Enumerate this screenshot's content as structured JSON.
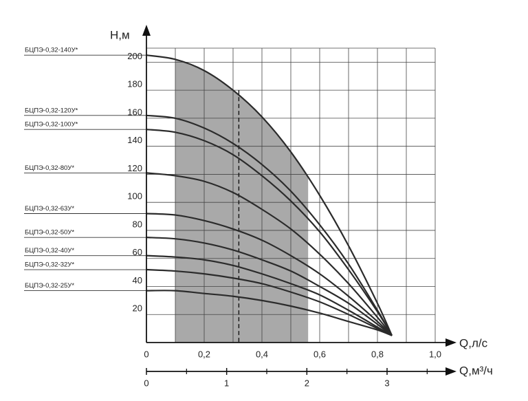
{
  "chart_data": {
    "type": "line",
    "y_label": "H,м",
    "x_label": "Q,л/с",
    "x2_label": "Q,м³/ч",
    "x": [
      0,
      0.1,
      0.2,
      0.3,
      0.4,
      0.5,
      0.6,
      0.7,
      0.8,
      0.85
    ],
    "xlim": [
      0,
      1
    ],
    "xticks": [
      0,
      {
        "value": 0.2,
        "label": "0,2"
      },
      {
        "value": 0.4,
        "label": "0,4"
      },
      {
        "value": 0.6,
        "label": "0,6"
      },
      {
        "value": 0.8,
        "label": "0,8"
      },
      {
        "value": 1,
        "label": "1,0"
      }
    ],
    "xminor": [
      0.1,
      0.3,
      0.5,
      0.7,
      0.9
    ],
    "x2lim": [
      0,
      3.6
    ],
    "x2ticks": [
      0,
      1,
      2,
      3
    ],
    "x2minor": [
      0.5,
      1.5,
      2.5,
      3.5
    ],
    "ylim": [
      0,
      210
    ],
    "yticks": [
      20,
      40,
      60,
      80,
      100,
      120,
      140,
      160,
      180,
      200
    ],
    "grid": true,
    "shaded_range": [
      0.1,
      0.56
    ],
    "shade_color": "#a9a9a9",
    "dashed_x": 0.32,
    "series": [
      {
        "name": "БЦПЭ-0,32-140У*",
        "color": "#2b2b2b",
        "values": [
          205,
          202,
          194,
          180,
          161,
          136,
          105,
          69,
          28,
          5
        ]
      },
      {
        "name": "БЦПЭ-0,32-120У*",
        "color": "#2b2b2b",
        "values": [
          162,
          160,
          153,
          142,
          127,
          108,
          84,
          56,
          23,
          5
        ]
      },
      {
        "name": "БЦПЭ-0,32-100У*",
        "color": "#2b2b2b",
        "values": [
          152,
          150,
          144,
          134,
          119,
          101,
          79,
          52,
          22,
          5
        ]
      },
      {
        "name": "БЦПЭ-0,32-80У*",
        "color": "#2b2b2b",
        "values": [
          121,
          119,
          115,
          107,
          95,
          81,
          63,
          42,
          18,
          5
        ]
      },
      {
        "name": "БЦПЭ-0,32-63У*",
        "color": "#2b2b2b",
        "values": [
          92,
          91,
          87,
          81,
          73,
          62,
          49,
          33,
          15,
          5
        ]
      },
      {
        "name": "БЦПЭ-0,32-50У*",
        "color": "#2b2b2b",
        "values": [
          75,
          74,
          71,
          66,
          59,
          51,
          40,
          28,
          13,
          5
        ]
      },
      {
        "name": "БЦПЭ-0,32-40У*",
        "color": "#2b2b2b",
        "values": [
          62,
          61,
          59,
          55,
          49,
          42,
          34,
          23,
          11,
          5
        ]
      },
      {
        "name": "БЦПЭ-0,32-32У*",
        "color": "#2b2b2b",
        "values": [
          52,
          51,
          49,
          46,
          42,
          36,
          29,
          20,
          10,
          5
        ]
      },
      {
        "name": "БЦПЭ-0,32-25У*",
        "color": "#2b2b2b",
        "values": [
          37,
          37,
          35,
          33,
          30,
          26,
          21,
          15,
          9,
          5
        ]
      }
    ]
  }
}
